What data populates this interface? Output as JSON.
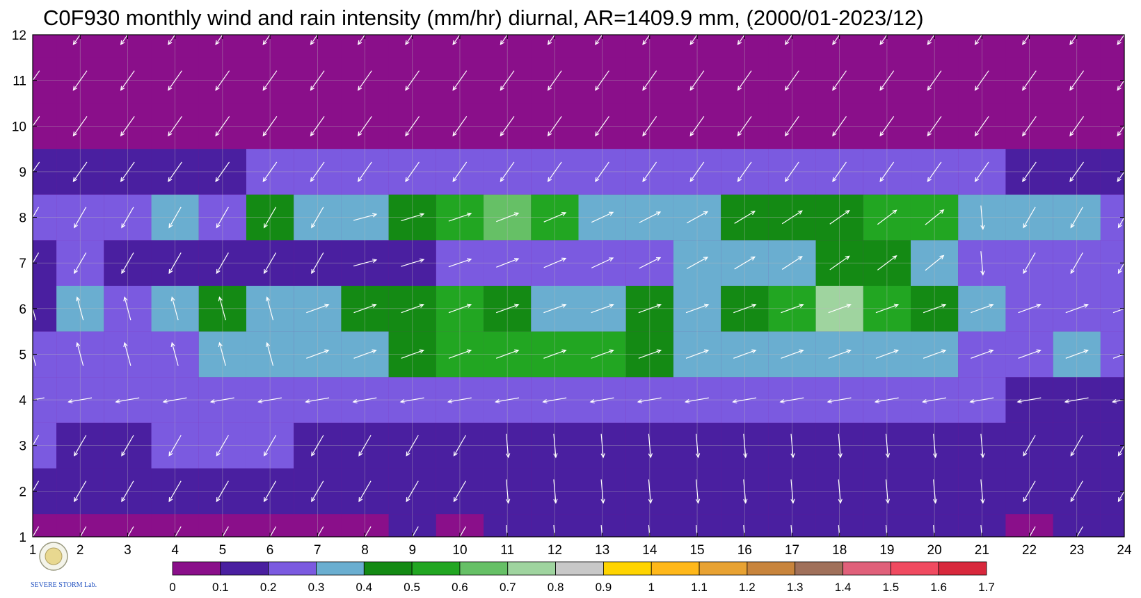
{
  "chart_data": {
    "type": "heatmap",
    "title": "C0F930 monthly wind and rain intensity (mm/hr) diurnal, AR=1409.9 mm, (2000/01-2023/12)",
    "xlabel": "",
    "ylabel": "",
    "xlim": [
      1,
      24
    ],
    "ylim": [
      1,
      12
    ],
    "x_ticks": [
      "1",
      "2",
      "3",
      "4",
      "5",
      "6",
      "7",
      "8",
      "9",
      "10",
      "11",
      "12",
      "13",
      "14",
      "15",
      "16",
      "17",
      "18",
      "19",
      "20",
      "21",
      "22",
      "23",
      "24"
    ],
    "y_ticks": [
      "1",
      "2",
      "3",
      "4",
      "5",
      "6",
      "7",
      "8",
      "9",
      "10",
      "11",
      "12"
    ],
    "grid": true,
    "colorbar": {
      "labels": [
        "0",
        "0.1",
        "0.2",
        "0.3",
        "0.4",
        "0.5",
        "0.6",
        "0.7",
        "0.8",
        "0.9",
        "1",
        "1.1",
        "1.2",
        "1.3",
        "1.4",
        "1.5",
        "1.6",
        "1.7"
      ],
      "colors": [
        "#8a0f8a",
        "#4a1fa0",
        "#7b5ae0",
        "#6aaed0",
        "#148a14",
        "#22a622",
        "#66c066",
        "#9fd49f",
        "#c8c8c8",
        "#ffd400",
        "#ffb81a",
        "#e8a232",
        "#c8843c",
        "#a0705a",
        "#e0607a",
        "#f04a60",
        "#d8283c"
      ]
    },
    "rain_intensity_rows": [
      {
        "month": 1,
        "values": [
          0.05,
          0.06,
          0.06,
          0.05,
          0.06,
          0.08,
          0.06,
          0.06,
          0.12,
          0.06,
          0.13,
          0.15,
          0.16,
          0.16,
          0.15,
          0.13,
          0.11,
          0.11,
          0.11,
          0.1,
          0.1,
          0.09,
          0.1,
          0.11
        ]
      },
      {
        "month": 2,
        "values": [
          0.12,
          0.1,
          0.12,
          0.13,
          0.12,
          0.14,
          0.15,
          0.15,
          0.14,
          0.16,
          0.18,
          0.18,
          0.18,
          0.18,
          0.18,
          0.16,
          0.14,
          0.14,
          0.15,
          0.15,
          0.14,
          0.12,
          0.13,
          0.12
        ]
      },
      {
        "month": 3,
        "values": [
          0.2,
          0.16,
          0.16,
          0.2,
          0.2,
          0.2,
          0.18,
          0.17,
          0.16,
          0.18,
          0.17,
          0.16,
          0.16,
          0.16,
          0.15,
          0.15,
          0.15,
          0.16,
          0.16,
          0.16,
          0.17,
          0.18,
          0.19,
          0.17
        ]
      },
      {
        "month": 4,
        "values": [
          0.22,
          0.2,
          0.2,
          0.25,
          0.2,
          0.25,
          0.25,
          0.26,
          0.26,
          0.24,
          0.25,
          0.26,
          0.26,
          0.26,
          0.25,
          0.25,
          0.26,
          0.25,
          0.25,
          0.24,
          0.24,
          0.19,
          0.18,
          0.19
        ]
      },
      {
        "month": 5,
        "values": [
          0.24,
          0.22,
          0.25,
          0.25,
          0.32,
          0.36,
          0.36,
          0.36,
          0.45,
          0.5,
          0.55,
          0.55,
          0.52,
          0.45,
          0.36,
          0.33,
          0.32,
          0.32,
          0.32,
          0.3,
          0.25,
          0.2,
          0.32,
          0.25
        ]
      },
      {
        "month": 6,
        "values": [
          0.16,
          0.32,
          0.25,
          0.3,
          0.42,
          0.36,
          0.36,
          0.4,
          0.45,
          0.5,
          0.45,
          0.36,
          0.38,
          0.42,
          0.36,
          0.4,
          0.55,
          0.78,
          0.55,
          0.45,
          0.3,
          0.2,
          0.22,
          0.25
        ]
      },
      {
        "month": 7,
        "values": [
          0.12,
          0.2,
          0.18,
          0.18,
          0.18,
          0.18,
          0.18,
          0.19,
          0.18,
          0.2,
          0.2,
          0.28,
          0.2,
          0.25,
          0.32,
          0.35,
          0.36,
          0.45,
          0.4,
          0.3,
          0.2,
          0.2,
          0.2,
          0.2
        ]
      },
      {
        "month": 8,
        "values": [
          0.22,
          0.2,
          0.25,
          0.3,
          0.25,
          0.45,
          0.36,
          0.3,
          0.46,
          0.58,
          0.62,
          0.5,
          0.36,
          0.35,
          0.3,
          0.44,
          0.45,
          0.45,
          0.56,
          0.52,
          0.35,
          0.36,
          0.3,
          0.28
        ]
      },
      {
        "month": 9,
        "values": [
          0.1,
          0.12,
          0.1,
          0.1,
          0.1,
          0.22,
          0.24,
          0.24,
          0.26,
          0.24,
          0.23,
          0.22,
          0.22,
          0.22,
          0.2,
          0.22,
          0.25,
          0.28,
          0.25,
          0.2,
          0.2,
          0.18,
          0.18,
          0.18
        ]
      },
      {
        "month": 10,
        "values": [
          0.06,
          0.06,
          0.05,
          0.05,
          0.05,
          0.06,
          0.06,
          0.06,
          0.06,
          0.06,
          0.06,
          0.06,
          0.06,
          0.06,
          0.06,
          0.06,
          0.07,
          0.08,
          0.07,
          0.06,
          0.06,
          0.06,
          0.06,
          0.06
        ]
      },
      {
        "month": 11,
        "values": [
          0.04,
          0.04,
          0.04,
          0.04,
          0.04,
          0.04,
          0.04,
          0.04,
          0.04,
          0.04,
          0.04,
          0.04,
          0.04,
          0.04,
          0.04,
          0.04,
          0.04,
          0.04,
          0.04,
          0.04,
          0.04,
          0.04,
          0.04,
          0.04
        ]
      },
      {
        "month": 12,
        "values": [
          0.04,
          0.04,
          0.04,
          0.04,
          0.04,
          0.04,
          0.04,
          0.04,
          0.04,
          0.04,
          0.04,
          0.04,
          0.04,
          0.04,
          0.04,
          0.04,
          0.04,
          0.04,
          0.04,
          0.04,
          0.04,
          0.04,
          0.04,
          0.04
        ]
      }
    ],
    "wind_vectors_description": "white arrows on a grid at each hour (1-24) and month (1-12)"
  }
}
